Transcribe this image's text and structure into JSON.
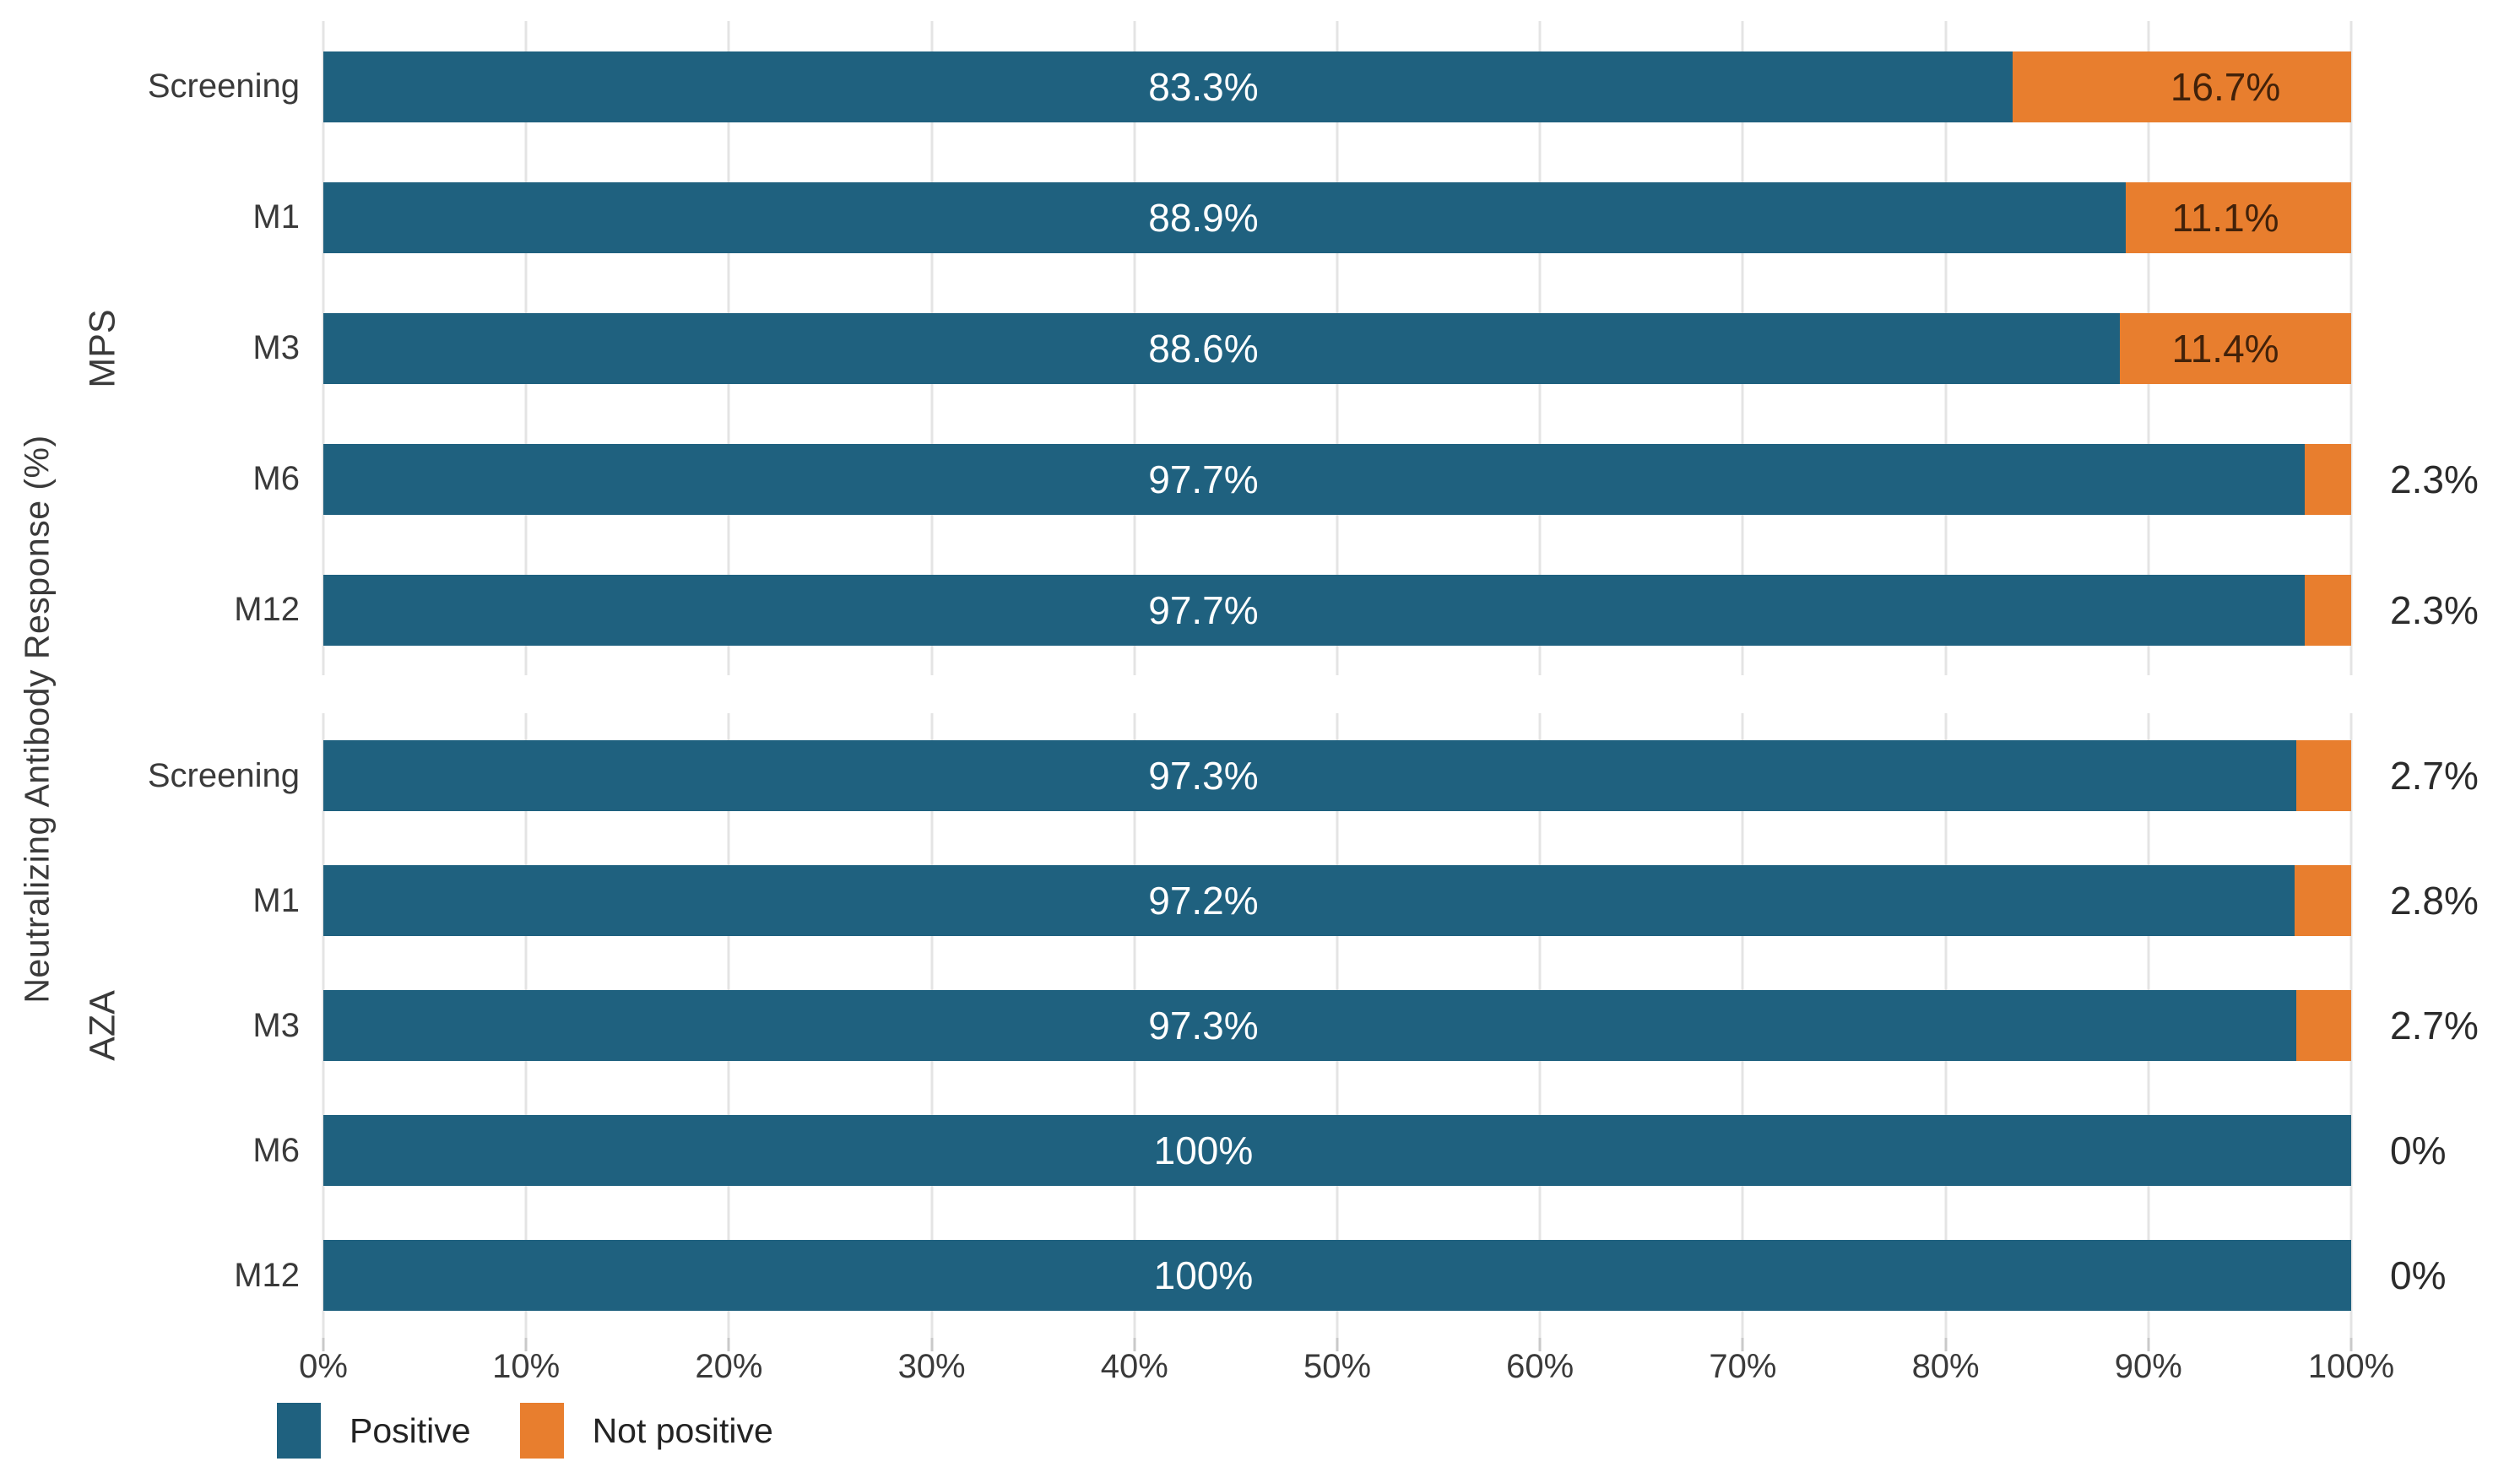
{
  "chart_data": {
    "type": "bar",
    "orientation": "horizontal",
    "stacked": true,
    "title": "",
    "xlabel": "",
    "ylabel": "Neutralizing Antibody Response (%)",
    "xlim": [
      0,
      100
    ],
    "x_tick_labels": [
      "0%",
      "10%",
      "20%",
      "30%",
      "40%",
      "50%",
      "60%",
      "70%",
      "80%",
      "90%",
      "100%"
    ],
    "grid": "vertical-only",
    "legend_position": "bottom-left",
    "legend": [
      {
        "key": "positive",
        "label": "Positive",
        "color": "#1F617F"
      },
      {
        "key": "not_positive",
        "label": "Not positive",
        "color": "#E87E2E"
      }
    ],
    "groups": [
      {
        "label": "MPS",
        "rows": [
          {
            "category": "Screening",
            "values": {
              "positive": 83.3,
              "not_positive": 16.7
            },
            "labels": {
              "positive": "83.3%",
              "not_positive": "16.7%"
            },
            "not_positive_label_position": "inside"
          },
          {
            "category": "M1",
            "values": {
              "positive": 88.9,
              "not_positive": 11.1
            },
            "labels": {
              "positive": "88.9%",
              "not_positive": "11.1%"
            },
            "not_positive_label_position": "inside"
          },
          {
            "category": "M3",
            "values": {
              "positive": 88.6,
              "not_positive": 11.4
            },
            "labels": {
              "positive": "88.6%",
              "not_positive": "11.4%"
            },
            "not_positive_label_position": "inside"
          },
          {
            "category": "M6",
            "values": {
              "positive": 97.7,
              "not_positive": 2.3
            },
            "labels": {
              "positive": "97.7%",
              "not_positive": "2.3%"
            },
            "not_positive_label_position": "outside"
          },
          {
            "category": "M12",
            "values": {
              "positive": 97.7,
              "not_positive": 2.3
            },
            "labels": {
              "positive": "97.7%",
              "not_positive": "2.3%"
            },
            "not_positive_label_position": "outside"
          }
        ]
      },
      {
        "label": "AZA",
        "rows": [
          {
            "category": "Screening",
            "values": {
              "positive": 97.3,
              "not_positive": 2.7
            },
            "labels": {
              "positive": "97.3%",
              "not_positive": "2.7%"
            },
            "not_positive_label_position": "outside"
          },
          {
            "category": "M1",
            "values": {
              "positive": 97.2,
              "not_positive": 2.8
            },
            "labels": {
              "positive": "97.2%",
              "not_positive": "2.8%"
            },
            "not_positive_label_position": "outside"
          },
          {
            "category": "M3",
            "values": {
              "positive": 97.3,
              "not_positive": 2.7
            },
            "labels": {
              "positive": "97.3%",
              "not_positive": "2.7%"
            },
            "not_positive_label_position": "outside"
          },
          {
            "category": "M6",
            "values": {
              "positive": 100,
              "not_positive": 0
            },
            "labels": {
              "positive": "100%",
              "not_positive": "0%"
            },
            "not_positive_label_position": "outside"
          },
          {
            "category": "M12",
            "values": {
              "positive": 100,
              "not_positive": 0
            },
            "labels": {
              "positive": "100%",
              "not_positive": "0%"
            },
            "not_positive_label_position": "outside"
          }
        ]
      }
    ]
  },
  "styles": {
    "positive_color": "#1F617F",
    "not_positive_color": "#E87E2E",
    "grid_color": "#E4E4E4",
    "tick_color": "#C9C9C9",
    "axis_text_color": "#3A3A3A",
    "inside_positive_label_color": "#FFFFFF",
    "inside_not_positive_label_color": "#42220A",
    "outside_label_color": "#2B2B2B"
  }
}
